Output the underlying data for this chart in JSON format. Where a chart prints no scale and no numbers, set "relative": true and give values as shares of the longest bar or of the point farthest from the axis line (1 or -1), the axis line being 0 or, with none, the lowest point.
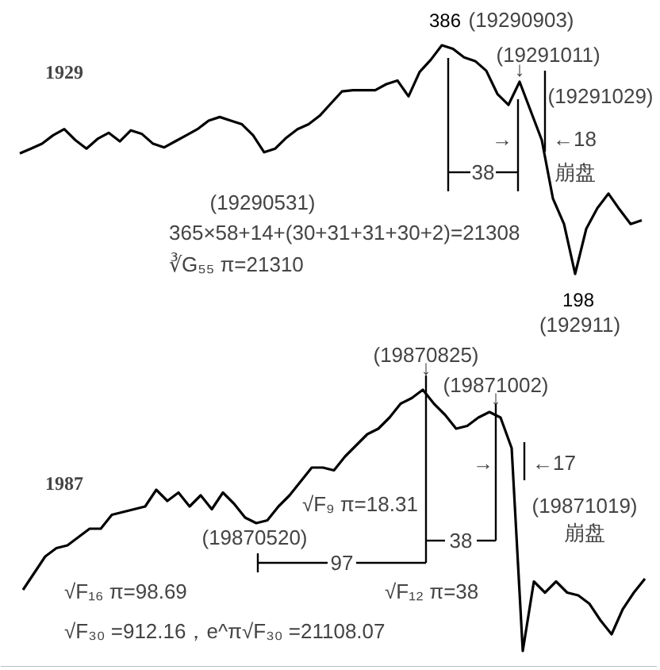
{
  "chart_data": [
    {
      "type": "line",
      "title": "1929",
      "color": "#000000",
      "categories": [
        null,
        null,
        null,
        null,
        null,
        null,
        null,
        null,
        null,
        null,
        null,
        null,
        null,
        null,
        null,
        null,
        null,
        null,
        null,
        null,
        null,
        null,
        null,
        null,
        null,
        null,
        null,
        null,
        null,
        null,
        null,
        null,
        null,
        null,
        null,
        null,
        null,
        null,
        null,
        null,
        null,
        null,
        null,
        null,
        null,
        null,
        null,
        null,
        null,
        null,
        null,
        null,
        null,
        null,
        null,
        null,
        null
      ],
      "values": [
        297,
        301,
        305,
        312,
        317,
        308,
        301,
        309,
        314,
        307,
        316,
        313,
        305,
        302,
        307,
        312,
        317,
        324,
        327,
        324,
        321,
        312,
        298,
        301,
        310,
        317,
        321,
        328,
        338,
        348,
        349,
        349,
        349,
        354,
        357,
        344,
        364,
        374,
        386,
        383,
        376,
        373,
        365,
        346,
        337,
        356,
        332,
        308,
        260,
        239,
        198,
        235,
        252,
        264,
        251,
        239,
        242
      ],
      "value_labels": [
        null,
        null,
        null,
        null,
        null,
        null,
        null,
        null,
        null,
        null,
        null,
        null,
        null,
        null,
        null,
        null,
        null,
        null,
        null,
        null,
        null,
        null,
        null,
        null,
        null,
        null,
        null,
        null,
        null,
        null,
        null,
        null,
        null,
        null,
        null,
        null,
        null,
        null,
        "386",
        null,
        null,
        null,
        null,
        null,
        null,
        null,
        null,
        null,
        null,
        null,
        "198",
        null,
        null,
        null,
        null,
        null,
        null
      ],
      "annotations": [
        "(19290903)",
        "(19291011)",
        "(19291029)",
        "←18",
        "38",
        "崩盘",
        "(19290531)",
        "365×58+14+(30+31+31+30+2)=21308",
        "∛G₅₅ π=21310",
        "(192911)",
        "→",
        "↓"
      ]
    },
    {
      "type": "line",
      "title": "1987",
      "color": "#000000",
      "relative": true,
      "categories": [
        null,
        null,
        null,
        null,
        null,
        null,
        null,
        null,
        null,
        null,
        null,
        null,
        null,
        null,
        null,
        null,
        null,
        null,
        null,
        null,
        null,
        null,
        null,
        null,
        null,
        null,
        null,
        null,
        null,
        null,
        null,
        null,
        null,
        null,
        null,
        null,
        null,
        null,
        null,
        null,
        null,
        null,
        null,
        null,
        null,
        null,
        null,
        null,
        null,
        null,
        null,
        null,
        null,
        null,
        null,
        null,
        null
      ],
      "values": [
        0.28,
        0.34,
        0.4,
        0.43,
        0.44,
        0.47,
        0.5,
        0.5,
        0.55,
        0.56,
        0.57,
        0.58,
        0.64,
        0.6,
        0.63,
        0.58,
        0.62,
        0.57,
        0.63,
        0.59,
        0.54,
        0.52,
        0.53,
        0.58,
        0.62,
        0.67,
        0.72,
        0.72,
        0.71,
        0.76,
        0.8,
        0.84,
        0.86,
        0.9,
        0.95,
        0.97,
        1.0,
        0.95,
        0.91,
        0.86,
        0.87,
        0.9,
        0.92,
        0.9,
        0.79,
        0.06,
        0.31,
        0.27,
        0.31,
        0.27,
        0.26,
        0.23,
        0.17,
        0.12,
        0.21,
        0.27,
        0.32
      ],
      "annotations": [
        "(19870825)",
        "(19871002)",
        "←17",
        "(19871019)",
        "崩盘",
        "√F₉ π=18.31",
        "(19870520)",
        "38",
        "97",
        "√F₁₆ π=98.69",
        "√F₁₂ π=38",
        "√F₃₀ =912.16，e^π√F₃₀ =21108.07",
        "→",
        "↓",
        "↓"
      ]
    }
  ]
}
